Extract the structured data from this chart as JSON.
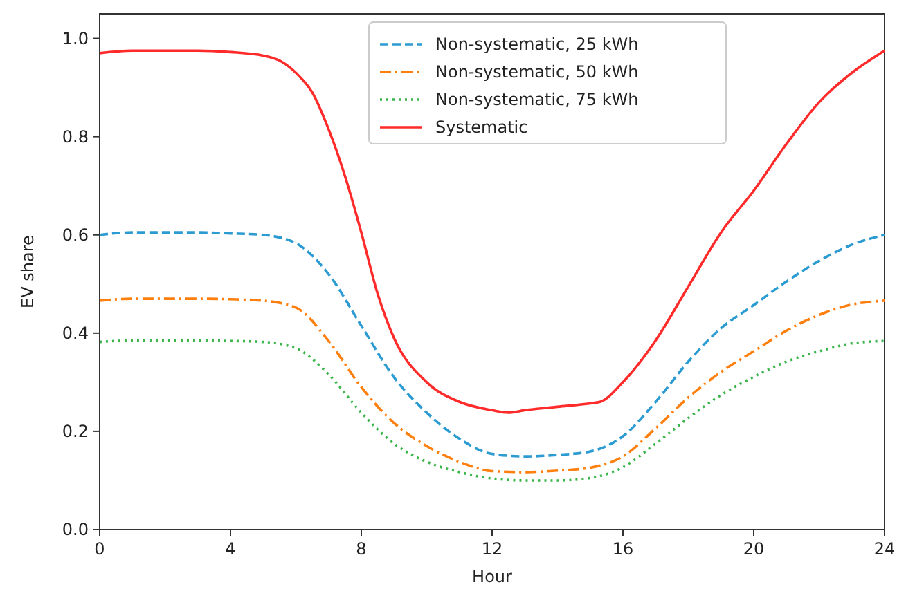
{
  "chart_data": {
    "type": "line",
    "xlabel": "Hour",
    "ylabel": "EV share",
    "x": [
      0,
      1,
      2,
      3,
      4,
      5,
      6,
      7,
      8,
      9,
      10,
      11,
      12,
      13,
      14,
      15,
      16,
      17,
      18,
      19,
      20,
      21,
      22,
      23,
      24
    ],
    "xlim": [
      0,
      24
    ],
    "xticks": [
      0,
      4,
      8,
      12,
      16,
      20,
      24
    ],
    "ylim": [
      0,
      1.05
    ],
    "yticks": [
      {
        "value": 0,
        "label": "0.0"
      },
      0.2,
      0.4,
      0.6,
      0.8,
      {
        "value": 1,
        "label": "1.0"
      }
    ],
    "grid": false,
    "legend": "top",
    "marker": "none",
    "series": [
      {
        "name": "Non-systematic, 25 kWh",
        "color": "#2b9bd1",
        "line_style": "dashed",
        "values": [
          0.6,
          0.605,
          0.605,
          0.605,
          0.603,
          0.6,
          0.583,
          0.52,
          0.415,
          0.31,
          0.238,
          0.185,
          0.154,
          0.149,
          0.152,
          0.159,
          0.19,
          0.26,
          0.342,
          0.41,
          0.457,
          0.505,
          0.547,
          0.58,
          0.6
        ]
      },
      {
        "name": "Non-systematic, 50 kWh",
        "color": "#ff7f0e",
        "line_style": "dashdot",
        "values": [
          0.466,
          0.47,
          0.47,
          0.47,
          0.469,
          0.466,
          0.452,
          0.384,
          0.29,
          0.217,
          0.17,
          0.138,
          0.119,
          0.117,
          0.12,
          0.126,
          0.149,
          0.206,
          0.269,
          0.321,
          0.363,
          0.405,
          0.437,
          0.458,
          0.466
        ]
      },
      {
        "name": "Non-systematic, 75 kWh",
        "color": "#3ab54a",
        "line_style": "dotted",
        "values": [
          0.382,
          0.385,
          0.385,
          0.385,
          0.384,
          0.382,
          0.369,
          0.316,
          0.238,
          0.175,
          0.138,
          0.117,
          0.104,
          0.1,
          0.1,
          0.105,
          0.127,
          0.175,
          0.227,
          0.274,
          0.311,
          0.342,
          0.363,
          0.379,
          0.384
        ]
      },
      {
        "name": "Systematic",
        "color": "#ff2a2a",
        "line_style": "solid",
        "x": [
          0,
          1,
          2,
          3,
          4,
          5,
          5.5,
          6,
          6.5,
          7,
          7.5,
          8,
          8.5,
          9,
          10,
          11,
          12,
          12.5,
          13,
          14,
          15,
          15.3,
          16,
          17,
          18,
          19,
          20,
          21,
          22,
          23,
          24
        ],
        "values": [
          0.97,
          0.975,
          0.975,
          0.975,
          0.972,
          0.965,
          0.955,
          0.93,
          0.89,
          0.815,
          0.72,
          0.605,
          0.48,
          0.39,
          0.3,
          0.26,
          0.243,
          0.238,
          0.243,
          0.25,
          0.257,
          0.26,
          0.3,
          0.385,
          0.495,
          0.605,
          0.69,
          0.785,
          0.87,
          0.93,
          0.975
        ]
      }
    ]
  }
}
